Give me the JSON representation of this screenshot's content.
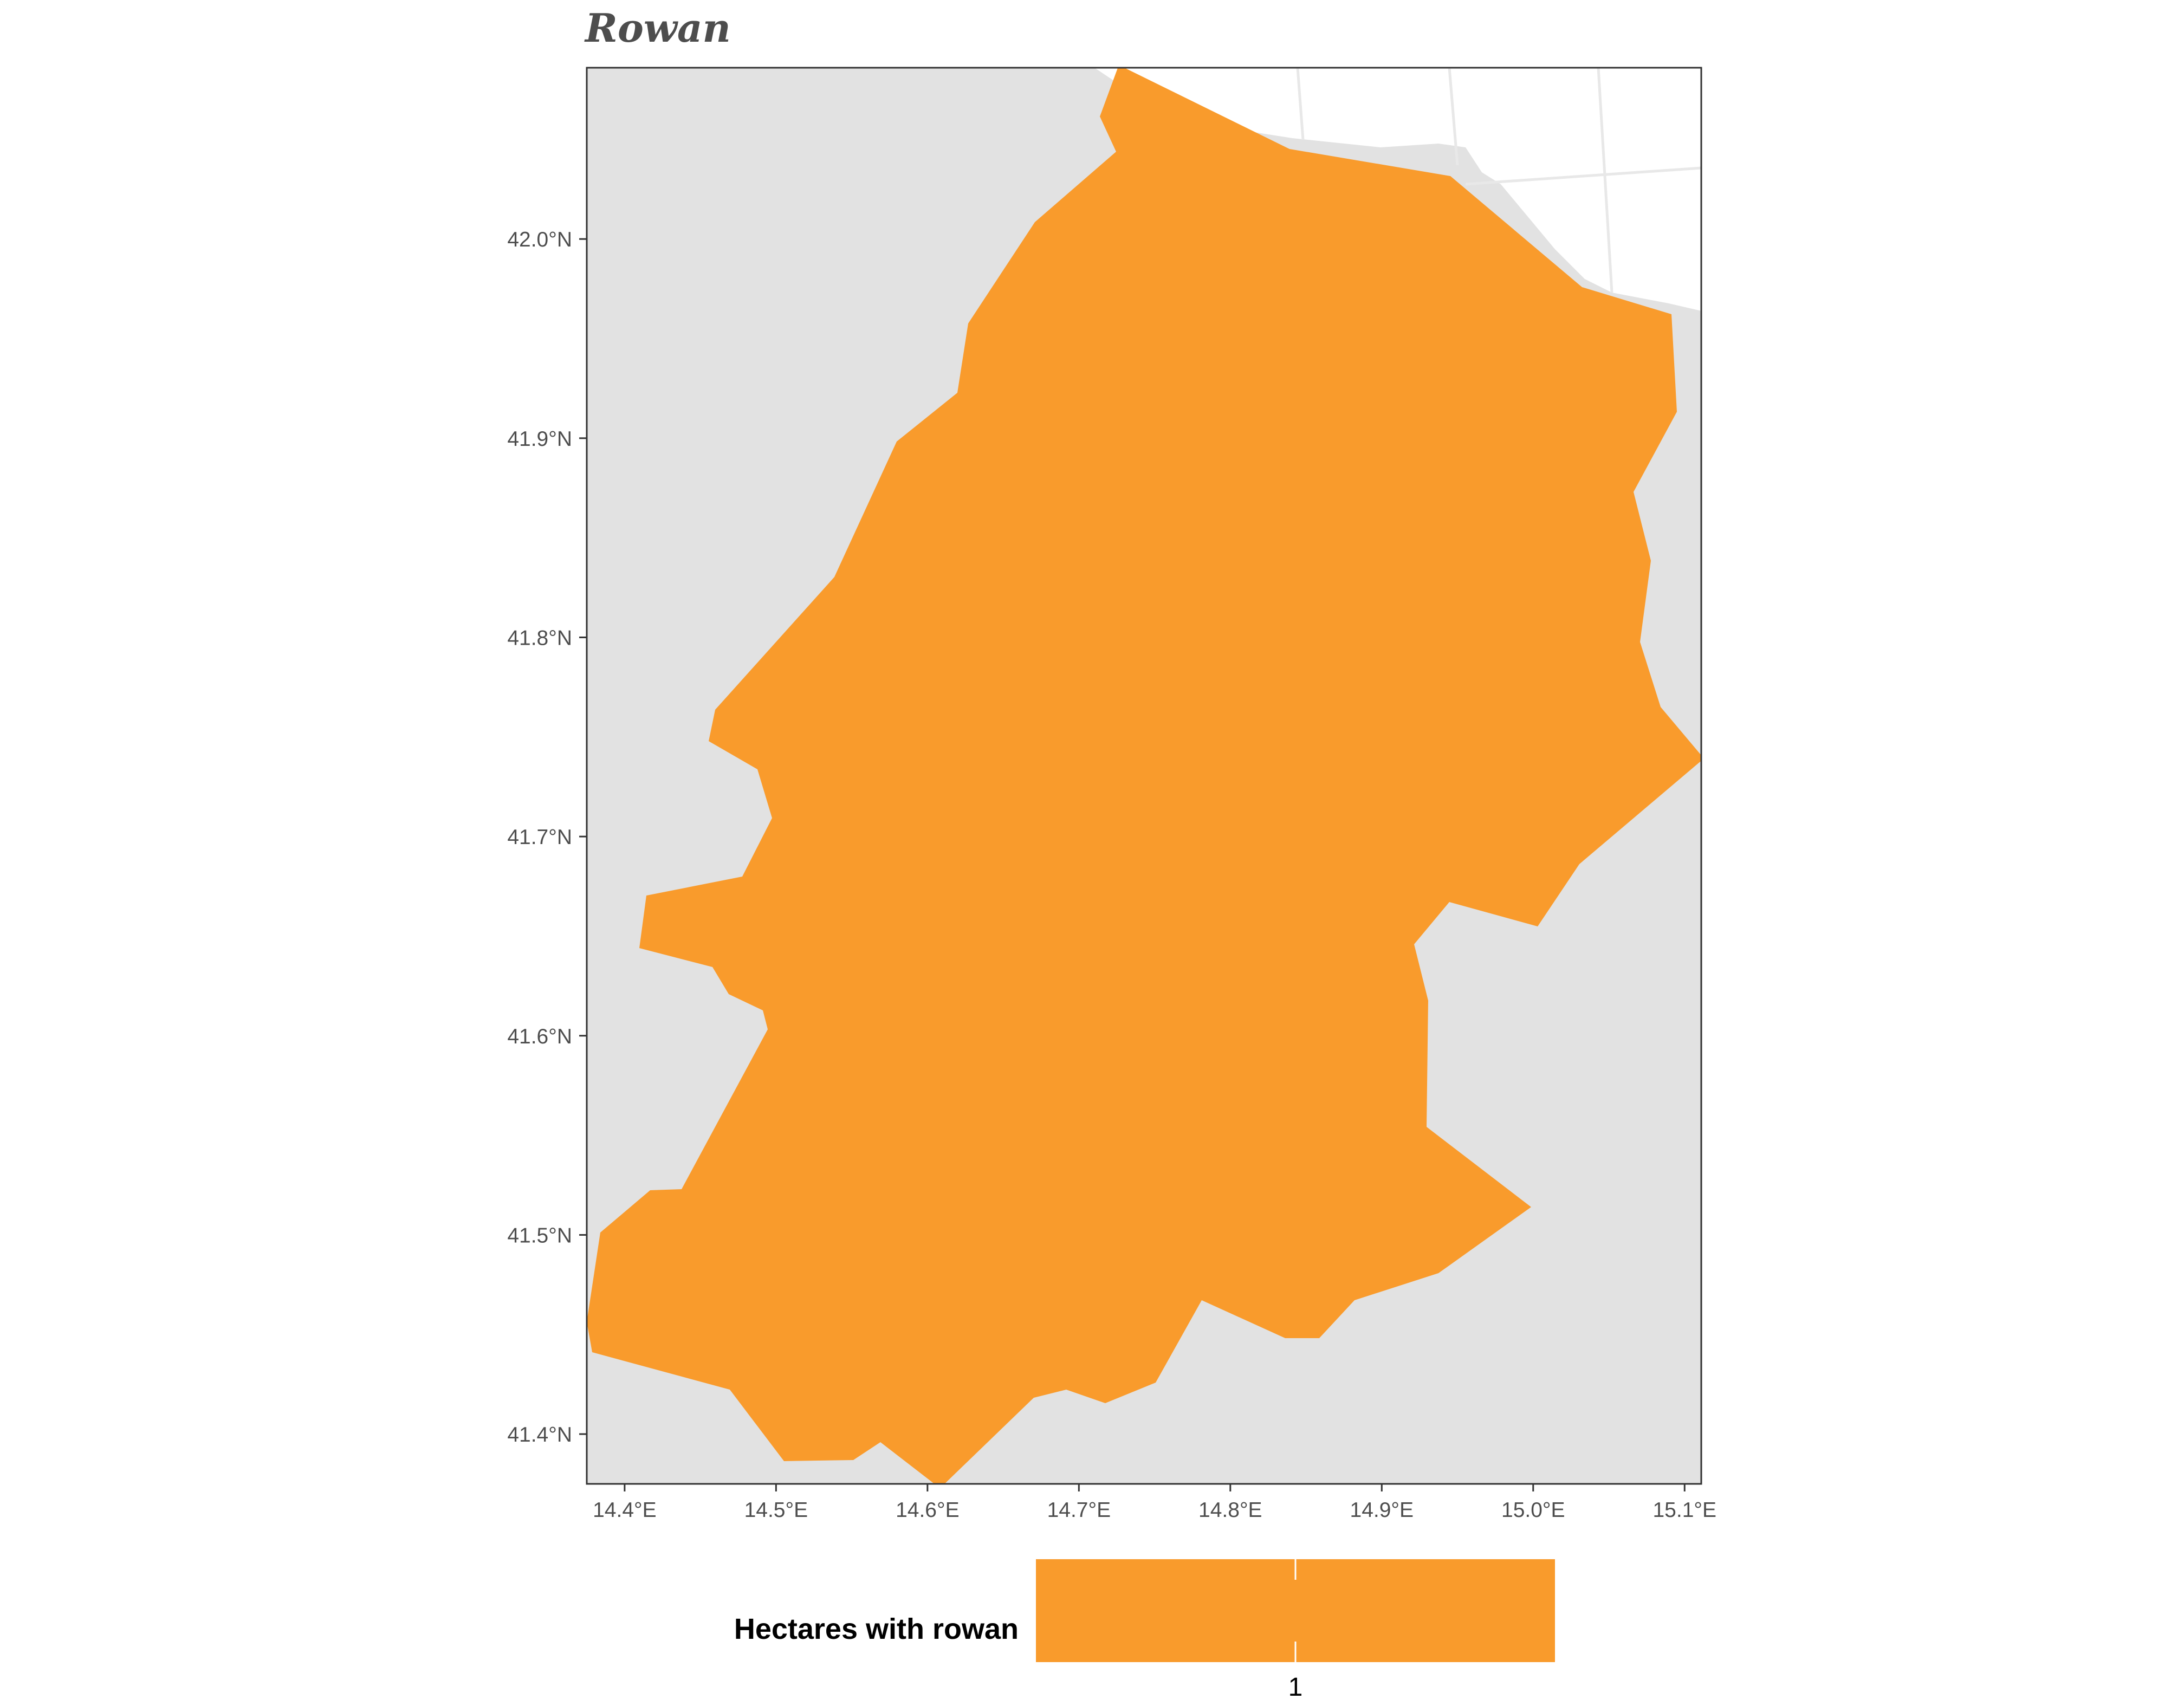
{
  "title": "Rowan",
  "map": {
    "region_fill": "#F99B2C",
    "background_land": "#E2E2E2",
    "sea": "#FFFFFF",
    "graticule_color": "#E8E8E8",
    "frame_color": "#333333",
    "lon_range": [
      14.375,
      15.111
    ],
    "lat_range": [
      41.375,
      42.086
    ]
  },
  "axes": {
    "x_ticks": [
      {
        "value": 14.4,
        "label": "14.4°E"
      },
      {
        "value": 14.5,
        "label": "14.5°E"
      },
      {
        "value": 14.6,
        "label": "14.6°E"
      },
      {
        "value": 14.7,
        "label": "14.7°E"
      },
      {
        "value": 14.8,
        "label": "14.8°E"
      },
      {
        "value": 14.9,
        "label": "14.9°E"
      },
      {
        "value": 15.0,
        "label": "15.0°E"
      },
      {
        "value": 15.1,
        "label": "15.1°E"
      }
    ],
    "y_ticks": [
      {
        "value": 42.0,
        "label": "42.0°N"
      },
      {
        "value": 41.9,
        "label": "41.9°N"
      },
      {
        "value": 41.8,
        "label": "41.8°N"
      },
      {
        "value": 41.7,
        "label": "41.7°N"
      },
      {
        "value": 41.6,
        "label": "41.6°N"
      },
      {
        "value": 41.5,
        "label": "41.5°N"
      },
      {
        "value": 41.4,
        "label": "41.4°N"
      }
    ]
  },
  "legend": {
    "title": "Hectares with rowan",
    "color": "#F99B2C",
    "break_label": "1"
  }
}
